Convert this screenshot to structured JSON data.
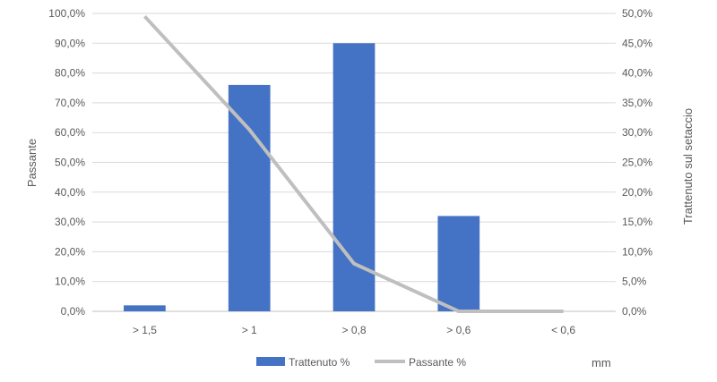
{
  "chart_data": {
    "type": "bar",
    "categories": [
      "> 1,5",
      "> 1",
      "> 0,8",
      "> 0,6",
      "< 0,6"
    ],
    "series": [
      {
        "name": "Trattenuto %",
        "type": "bar",
        "axis": "right",
        "color": "#4472c4",
        "values": [
          1.0,
          38.0,
          45.0,
          16.0,
          0.0
        ]
      },
      {
        "name": "Passante %",
        "type": "line",
        "axis": "left",
        "color": "#bfbfbf",
        "values": [
          99.0,
          61.0,
          16.0,
          0.0,
          0.0
        ]
      }
    ],
    "ylabel": "Passante",
    "y2label": "Trattenuto sul setaccio",
    "xlabel": "mm",
    "ylim": [
      0,
      100
    ],
    "y2lim": [
      0,
      50
    ],
    "yticks": [
      "0,0%",
      "10,0%",
      "20,0%",
      "30,0%",
      "40,0%",
      "50,0%",
      "60,0%",
      "70,0%",
      "80,0%",
      "90,0%",
      "100,0%"
    ],
    "y2ticks": [
      "0,0%",
      "5,0%",
      "10,0%",
      "15,0%",
      "20,0%",
      "25,0%",
      "30,0%",
      "35,0%",
      "40,0%",
      "45,0%",
      "50,0%"
    ],
    "grid": true,
    "legend_position": "bottom"
  }
}
